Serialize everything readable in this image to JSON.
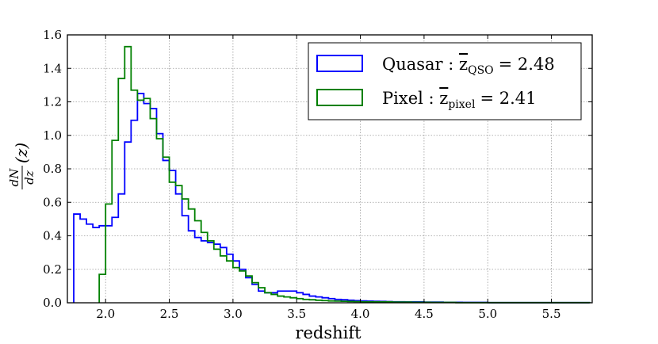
{
  "chart_data": {
    "type": "histogram",
    "xlabel": "redshift",
    "ylabel": {
      "numerator": "dN",
      "denominator": "dz",
      "argument": "(z)"
    },
    "xlim": [
      1.7,
      5.82
    ],
    "ylim": [
      0.0,
      1.6
    ],
    "grid": true,
    "bin_width": 0.05,
    "xticks": [
      2.0,
      2.5,
      3.0,
      3.5,
      4.0,
      4.5,
      5.0,
      5.5
    ],
    "xtick_labels": [
      "2.0",
      "2.5",
      "3.0",
      "3.5",
      "4.0",
      "4.5",
      "5.0",
      "5.5"
    ],
    "yticks": [
      0.0,
      0.2,
      0.4,
      0.6,
      0.8,
      1.0,
      1.2,
      1.4,
      1.6
    ],
    "ytick_labels": [
      "0.0",
      "0.2",
      "0.4",
      "0.6",
      "0.8",
      "1.0",
      "1.2",
      "1.4",
      "1.6"
    ],
    "legend": {
      "placement": "top-right",
      "entries": [
        {
          "label": "Quasar : ",
          "zsym": "z",
          "sub": "QSO",
          "value": "= 2.48"
        },
        {
          "label": "Pixel : ",
          "zsym": "z",
          "sub": "pixel",
          "value": "= 2.41"
        }
      ]
    },
    "series": [
      {
        "name": "Quasar",
        "color": "#0000ff",
        "x_start": 1.75,
        "values": [
          0.53,
          0.5,
          0.47,
          0.45,
          0.46,
          0.46,
          0.51,
          0.65,
          0.96,
          1.09,
          1.25,
          1.19,
          1.16,
          1.01,
          0.85,
          0.79,
          0.65,
          0.52,
          0.43,
          0.39,
          0.37,
          0.36,
          0.35,
          0.33,
          0.29,
          0.25,
          0.2,
          0.15,
          0.11,
          0.07,
          0.06,
          0.06,
          0.07,
          0.07,
          0.07,
          0.06,
          0.05,
          0.04,
          0.035,
          0.03,
          0.025,
          0.02,
          0.018,
          0.015,
          0.013,
          0.011,
          0.01,
          0.009,
          0.008,
          0.007,
          0.006,
          0.006,
          0.005,
          0.005,
          0.005,
          0.004,
          0.004,
          0.004,
          0.003,
          0.003,
          0.003,
          0.002,
          0.002,
          0.002,
          0.002,
          0.001,
          0.001,
          0.001,
          0.001,
          0.001,
          0.001,
          0.001,
          0.001,
          0.001,
          0.001,
          0.001,
          0.001,
          0.001,
          0.001,
          0.001,
          0.001
        ]
      },
      {
        "name": "Pixel",
        "color": "#008000",
        "x_start": 1.95,
        "values": [
          0.17,
          0.59,
          0.97,
          1.34,
          1.53,
          1.27,
          1.21,
          1.22,
          1.1,
          0.98,
          0.87,
          0.72,
          0.7,
          0.62,
          0.56,
          0.49,
          0.42,
          0.37,
          0.32,
          0.28,
          0.25,
          0.21,
          0.19,
          0.16,
          0.12,
          0.09,
          0.06,
          0.05,
          0.04,
          0.035,
          0.03,
          0.025,
          0.02,
          0.018,
          0.015,
          0.013,
          0.011,
          0.01,
          0.009,
          0.008,
          0.007,
          0.006,
          0.006,
          0.005,
          0.005,
          0.005,
          0.004,
          0.004,
          0.004,
          0.003,
          0.003,
          0.003,
          0.002,
          0.002,
          0.002,
          0.002,
          0.001,
          0.001,
          0.001,
          0.001,
          0.001,
          0.001,
          0.001,
          0.001,
          0.001,
          0.001,
          0.001,
          0.001,
          0.001,
          0.001,
          0.001,
          0.001,
          0.001,
          0.001,
          0.001,
          0.001,
          0.001
        ]
      }
    ]
  }
}
